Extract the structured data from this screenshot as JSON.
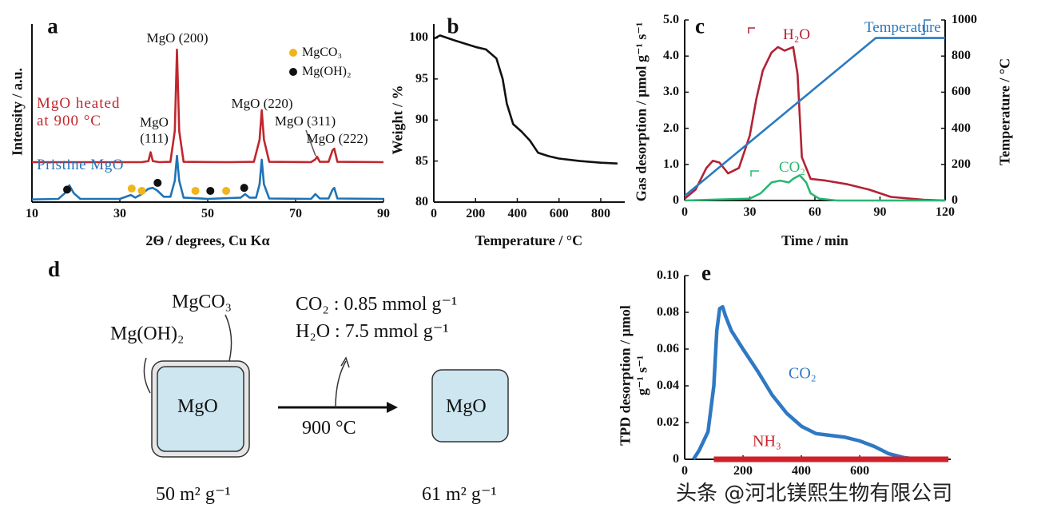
{
  "chart_data": [
    {
      "type": "line",
      "panel": "a",
      "xlabel": "2Θ / degrees, Cu Kα",
      "ylabel": "Intensity / a.u.",
      "xlim": [
        10,
        90
      ],
      "xticks": [
        10,
        30,
        50,
        70,
        90
      ],
      "ylim": [
        0,
        100
      ],
      "annotations": [
        "MgO (200)",
        "MgO (111)",
        "MgO (220)",
        "MgO (311)",
        "MgO (222)"
      ],
      "series": [
        {
          "name": "MgO heated at 900 °C",
          "color": "#c0272d",
          "x": [
            10,
            18,
            30,
            35,
            36.5,
            37,
            37.5,
            39,
            41.5,
            42.5,
            43,
            43.5,
            44.5,
            55,
            60.5,
            61.8,
            62.3,
            62.8,
            64,
            73.5,
            74.5,
            74.9,
            75.5,
            77.5,
            78.4,
            78.8,
            79.5,
            90
          ],
          "values": [
            22.4,
            22.4,
            22.4,
            22.4,
            23,
            28,
            23,
            22.4,
            22.6,
            40,
            85.6,
            40,
            22.6,
            22.4,
            22.6,
            35,
            51.6,
            35,
            22.6,
            22.4,
            24,
            25.5,
            22.6,
            22.6,
            29,
            30,
            22.6,
            22.4
          ]
        },
        {
          "name": "Pristine MgO",
          "color": "#1f73b7",
          "x": [
            10,
            16,
            17.5,
            18.5,
            19.5,
            21,
            30,
            32.5,
            33.5,
            35,
            36.5,
            37.5,
            38.5,
            40,
            41.5,
            42.5,
            43,
            43.5,
            44.5,
            50,
            57.5,
            58.5,
            59.5,
            61,
            61.8,
            62.3,
            62.8,
            64,
            73.5,
            74.5,
            75.5,
            77.5,
            78.4,
            78.8,
            79.5,
            90
          ],
          "values": [
            1.5,
            1.8,
            5,
            9.4,
            5,
            1.8,
            1.8,
            4,
            2.5,
            4.5,
            7.5,
            8,
            6.5,
            3,
            3,
            12,
            26,
            12,
            2.5,
            1.8,
            2.5,
            4.5,
            2.5,
            2.5,
            10,
            23.8,
            10,
            2,
            1.8,
            4.5,
            2,
            2,
            7,
            8,
            2,
            1.8
          ]
        },
        {
          "name": "MgCO₃",
          "type": "scatter",
          "color": "#f2b41c",
          "x": [
            32.7,
            35,
            47.2,
            54.2
          ],
          "values": [
            7.6,
            6.3,
            6.3,
            6.3
          ]
        },
        {
          "name": "Mg(OH)₂",
          "type": "scatter",
          "color": "#111111",
          "x": [
            18,
            38.6,
            50.6,
            58.3
          ],
          "values": [
            7,
            10.8,
            6.3,
            8
          ]
        }
      ]
    },
    {
      "type": "line",
      "panel": "b",
      "xlabel": "Temperature / °C",
      "ylabel": "Weight / %",
      "xlim": [
        0,
        915
      ],
      "xticks": [
        0,
        200,
        400,
        600,
        800
      ],
      "ylim": [
        80,
        101.7
      ],
      "yticks": [
        80,
        85,
        90,
        95,
        100
      ],
      "series": [
        {
          "color": "#111111",
          "x": [
            0,
            30,
            100,
            200,
            250,
            300,
            330,
            350,
            380,
            420,
            460,
            500,
            550,
            600,
            700,
            800,
            880
          ],
          "values": [
            99.9,
            100.3,
            99.7,
            98.9,
            98.6,
            97.5,
            95,
            92,
            89.5,
            88.6,
            87.5,
            86,
            85.6,
            85.3,
            85.0,
            84.8,
            84.7
          ]
        }
      ]
    },
    {
      "type": "line",
      "panel": "c",
      "xlabel": "Time / min",
      "ylabel": "Gas desorption / μmol g⁻¹ s⁻¹",
      "y2label": "Temperature / °C",
      "xlim": [
        0,
        120
      ],
      "xticks": [
        0,
        30,
        60,
        90,
        120
      ],
      "ylim": [
        0,
        5
      ],
      "yticks": [
        0,
        {
          "value": 1,
          "label": "1.0"
        },
        {
          "value": 2,
          "label": "2.0"
        },
        {
          "value": 3,
          "label": "3.0"
        },
        {
          "value": 4,
          "label": "4.0"
        },
        {
          "value": 5,
          "label": "5.0"
        }
      ],
      "y2lim": [
        0,
        1000
      ],
      "y2ticks": [
        0,
        200,
        400,
        600,
        800,
        1000
      ],
      "series": [
        {
          "name": "H₂O",
          "color": "#b22234",
          "x": [
            0,
            5,
            10,
            13,
            16,
            20,
            25,
            30,
            33,
            36,
            40,
            43,
            46,
            50,
            52,
            54,
            58,
            65,
            75,
            85,
            95,
            110,
            120
          ],
          "values": [
            0.05,
            0.3,
            0.9,
            1.1,
            1.05,
            0.75,
            0.9,
            1.8,
            2.8,
            3.6,
            4.1,
            4.25,
            4.15,
            4.25,
            3.5,
            1.2,
            0.6,
            0.55,
            0.45,
            0.3,
            0.1,
            0.02,
            0
          ]
        },
        {
          "name": "CO₂",
          "color": "#2bb673",
          "x": [
            0,
            30,
            35,
            40,
            44,
            48,
            50,
            53,
            56,
            58,
            62,
            70,
            120
          ],
          "values": [
            0,
            0.05,
            0.2,
            0.5,
            0.55,
            0.5,
            0.6,
            0.7,
            0.5,
            0.2,
            0.05,
            0,
            0
          ]
        },
        {
          "name": "Temperature",
          "color": "#2a7ac0",
          "axis": "y2",
          "x": [
            0,
            88,
            120
          ],
          "values": [
            25,
            900,
            900
          ]
        }
      ]
    },
    {
      "type": "line",
      "panel": "e",
      "ylabel": "TPD desorption / μmol g⁻¹ s⁻¹",
      "xlim": [
        0,
        912
      ],
      "xticks": [
        0,
        200,
        400,
        600
      ],
      "ylim": [
        0,
        0.1
      ],
      "yticks": [
        0,
        0.02,
        0.04,
        0.06,
        0.08,
        {
          "value": 0.1,
          "label": "0.10"
        }
      ],
      "series": [
        {
          "name": "CO₂",
          "color": "#2f78c4",
          "x": [
            30,
            50,
            80,
            100,
            110,
            120,
            130,
            140,
            160,
            200,
            250,
            300,
            350,
            400,
            450,
            500,
            550,
            600,
            650,
            700,
            750,
            800
          ],
          "values": [
            0,
            0.005,
            0.015,
            0.04,
            0.07,
            0.082,
            0.083,
            0.078,
            0.07,
            0.06,
            0.048,
            0.035,
            0.025,
            0.018,
            0.014,
            0.013,
            0.012,
            0.01,
            0.007,
            0.003,
            0.001,
            0
          ]
        },
        {
          "name": "NH₃",
          "color": "#d0202a",
          "x": [
            100,
            904
          ],
          "values": [
            0,
            0
          ]
        }
      ]
    }
  ],
  "diagram": {
    "panel": "d",
    "adsorbates": [
      "MgCO₃",
      "Mg(OH)₂"
    ],
    "before": "MgO",
    "after": "MgO",
    "released": [
      "CO₂ : 0.85 mmol g⁻¹",
      "H₂O : 7.5 mmol g⁻¹"
    ],
    "condition": "900 °C",
    "surface_areas": [
      "50 m² g⁻¹",
      "61 m² g⁻¹"
    ]
  },
  "watermark": "头条 @河北镁熙生物有限公司"
}
